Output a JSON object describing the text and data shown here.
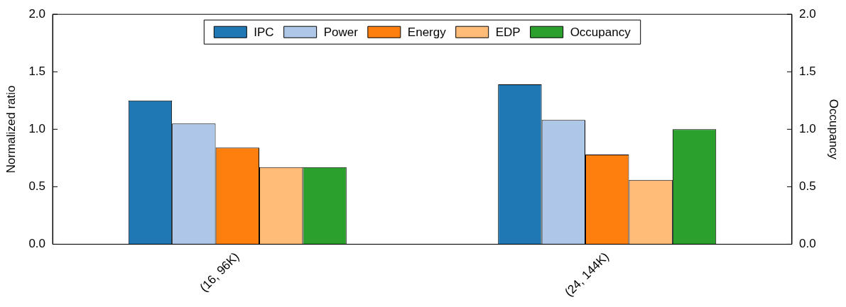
{
  "chart_data": {
    "type": "bar",
    "categories": [
      "(16, 96K)",
      "(24, 144K)"
    ],
    "ylabel": "Normalized ratio",
    "y2label": "Occupancy",
    "ylim": [
      0,
      2
    ],
    "yticks": [
      {
        "value": 0,
        "label": "0.0"
      },
      {
        "value": 0.5,
        "label": "0.5"
      },
      {
        "value": 1,
        "label": "1.0"
      },
      {
        "value": 1.5,
        "label": "1.5"
      },
      {
        "value": 2,
        "label": "2.0"
      }
    ],
    "y2lim": [
      0,
      2
    ],
    "y2ticks": [
      {
        "value": 0,
        "label": "0.0"
      },
      {
        "value": 0.5,
        "label": "0.5"
      },
      {
        "value": 1,
        "label": "1.0"
      },
      {
        "value": 1.5,
        "label": "1.5"
      },
      {
        "value": 2,
        "label": "2.0"
      }
    ],
    "grid": false,
    "legend": "top",
    "series": [
      {
        "name": "IPC",
        "color": "#1f77b4",
        "values": [
          1.25,
          1.39
        ]
      },
      {
        "name": "Power",
        "color": "#aec7e8",
        "values": [
          1.05,
          1.08
        ]
      },
      {
        "name": "Energy",
        "color": "#ff7f0e",
        "values": [
          0.84,
          0.78
        ]
      },
      {
        "name": "EDP",
        "color": "#ffbb78",
        "values": [
          0.67,
          0.56
        ]
      },
      {
        "name": "Occupancy",
        "color": "#2ca02c",
        "values": [
          0.67,
          1.0
        ],
        "axis": "y2"
      }
    ]
  }
}
